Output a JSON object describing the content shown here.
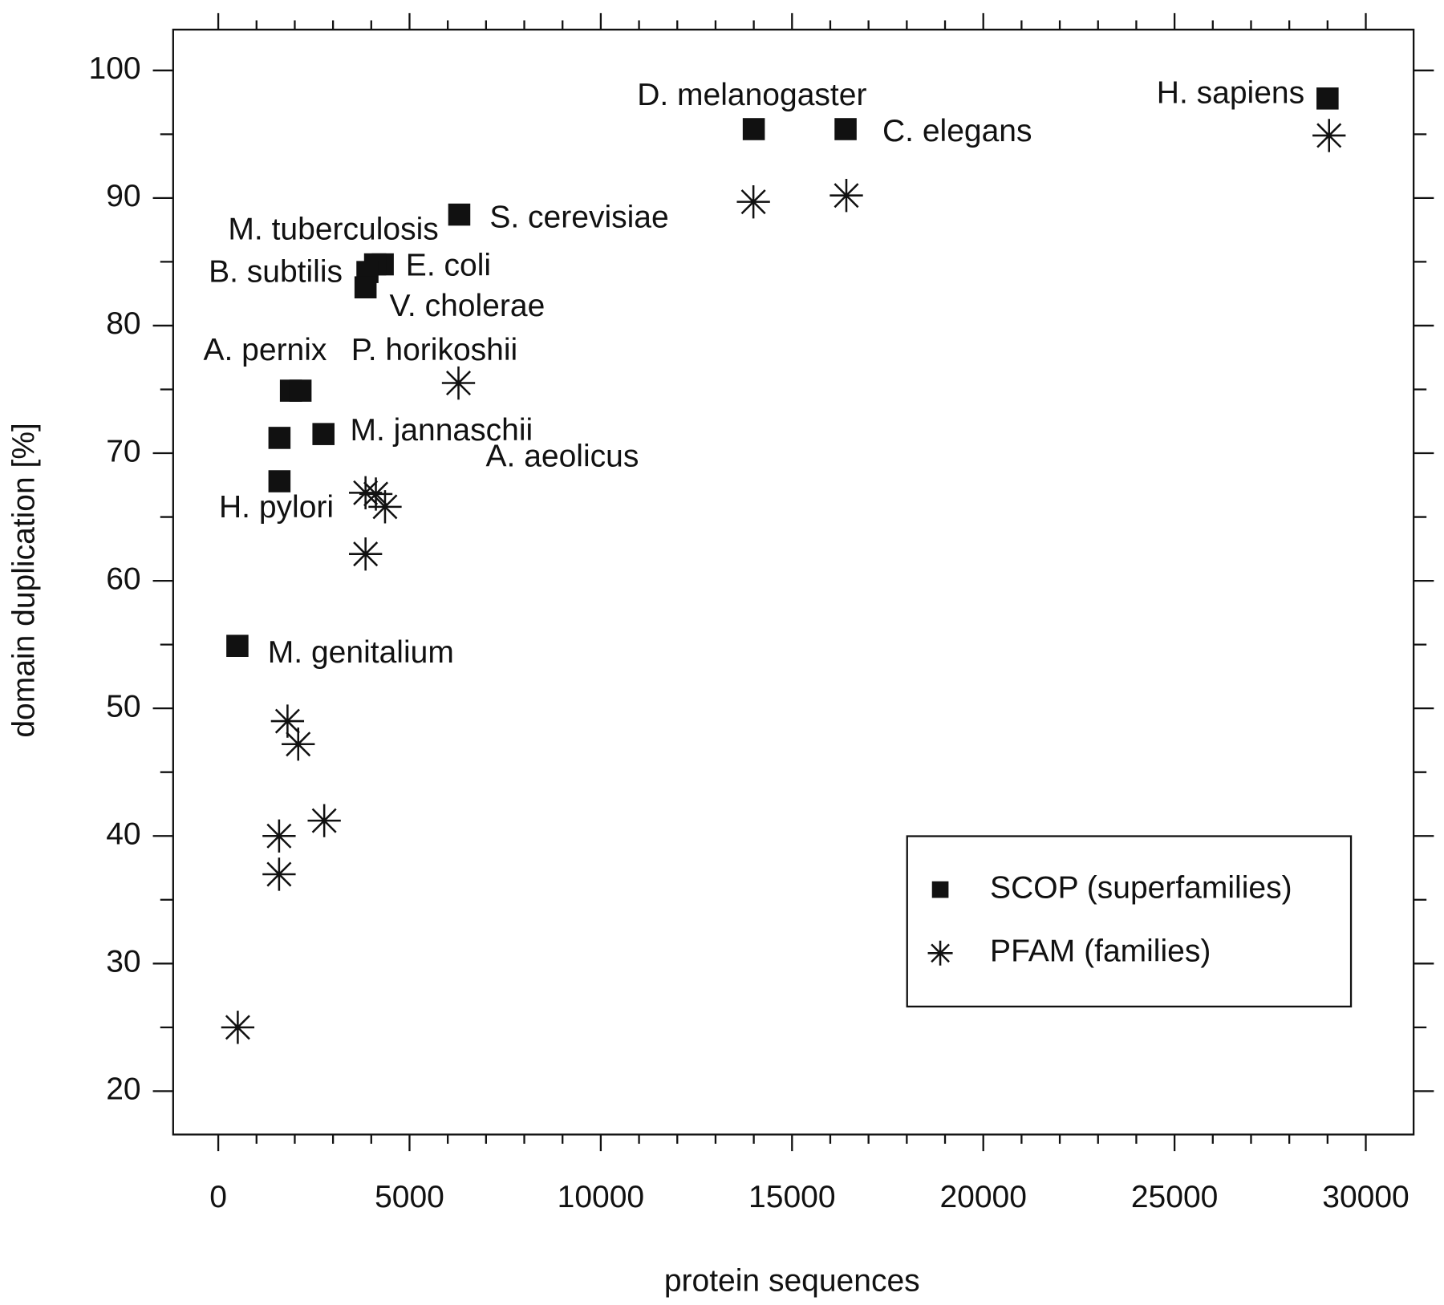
{
  "chart_data": {
    "type": "scatter",
    "x_label": "protein sequences",
    "y_label": "domain duplication [%]",
    "xlim": [
      -1180,
      31250
    ],
    "ylim": [
      16.6,
      103.2
    ],
    "xticks": [
      0,
      5000,
      10000,
      15000,
      20000,
      25000,
      30000
    ],
    "yticks": [
      20,
      30,
      40,
      50,
      60,
      70,
      80,
      90,
      100
    ],
    "x_minor_ticks": [
      1000,
      2000,
      3000,
      4000,
      6000,
      7000,
      8000,
      9000,
      11000,
      12000,
      13000,
      14000,
      16000,
      17000,
      18000,
      19000,
      21000,
      22000,
      23000,
      24000,
      26000,
      27000,
      28000,
      29000
    ],
    "y_minor_ticks": [
      25,
      35,
      45,
      55,
      65,
      75,
      85,
      95
    ],
    "grid": false,
    "legend_position": "lower right",
    "point_labels": [
      "H. sapiens",
      "C. elegans",
      "D. melanogaster",
      "S. cerevisiae",
      "E. coli",
      "M. tuberculosis",
      "B. subtilis",
      "V. cholerae",
      "A. pernix",
      "P. horikoshii",
      "M. jannaschii",
      "A. aeolicus",
      "H. pylori",
      "M. genitalium"
    ],
    "series": [
      {
        "name": "SCOP (superfamilies)",
        "marker": "square",
        "color": "#111111",
        "x": [
          29000,
          16400,
          14000,
          6300,
          4300,
          4100,
          3900,
          3850,
          1900,
          2150,
          2750,
          1600,
          1600,
          500
        ],
        "y": [
          97.8,
          95.4,
          95.4,
          88.7,
          84.8,
          84.8,
          84.2,
          83.0,
          74.9,
          74.9,
          71.5,
          71.2,
          67.8,
          54.9
        ]
      },
      {
        "name": "PFAM (families)",
        "marker": "asterisk",
        "color": "#111111",
        "x": [
          29040,
          16420,
          13990,
          6280,
          3850,
          4120,
          4360,
          3850,
          1810,
          2090,
          2770,
          1590,
          1590,
          510
        ],
        "y": [
          94.9,
          90.2,
          89.7,
          75.5,
          66.9,
          66.8,
          65.8,
          62.1,
          49.0,
          47.2,
          41.2,
          40.0,
          37.0,
          25.0
        ]
      }
    ]
  }
}
